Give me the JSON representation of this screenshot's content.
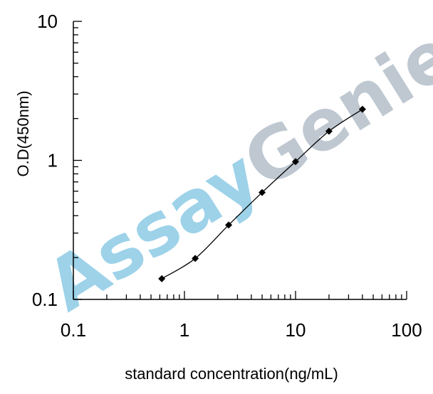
{
  "watermark": {
    "text": "AssayGenie",
    "color_assay": "#8ccbe6",
    "color_genie": "#b4bfca"
  },
  "chart_data": {
    "type": "line",
    "title": "",
    "xlabel": "standard concentration(ng/mL)",
    "ylabel": "O.D(450nm)",
    "xscale": "log",
    "yscale": "log",
    "xlim": [
      0.1,
      100
    ],
    "ylim": [
      0.1,
      10
    ],
    "x_ticks": [
      "0.1",
      "1",
      "10",
      "100"
    ],
    "y_ticks": [
      "0.1",
      "1",
      "10"
    ],
    "grid": false,
    "legend": "none",
    "series": [
      {
        "color": "#000000",
        "marker": "diamond",
        "x": [
          0.625,
          1.25,
          2.5,
          5,
          10,
          20,
          40
        ],
        "y": [
          0.141,
          0.197,
          0.343,
          0.588,
          0.98,
          1.62,
          2.33
        ]
      }
    ]
  }
}
